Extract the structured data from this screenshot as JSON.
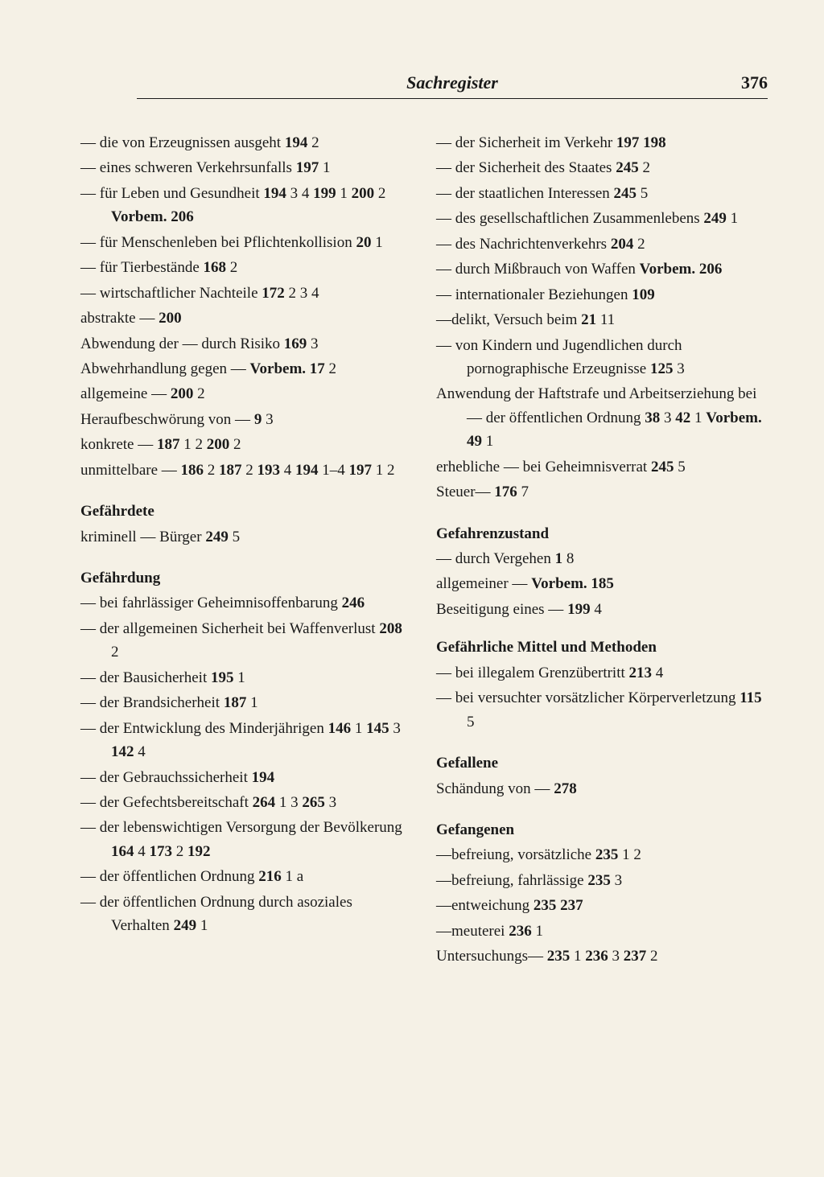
{
  "page": {
    "title": "Sachregister",
    "number": "376",
    "background_color": "#f5f1e6",
    "text_color": "#1a1a1a",
    "font_family": "Georgia, Times New Roman, serif",
    "body_fontsize": 19,
    "heading_fontsize": 22,
    "line_height": 1.55
  },
  "left_column": {
    "entries_1": [
      {
        "segments": [
          {
            "t": "— die von Erzeugnissen ausgeht "
          },
          {
            "t": "194",
            "b": true
          },
          {
            "t": " 2"
          }
        ]
      },
      {
        "segments": [
          {
            "t": "— eines schweren Verkehrsunfalls  "
          },
          {
            "t": "197",
            "b": true
          },
          {
            "t": " 1"
          }
        ]
      },
      {
        "segments": [
          {
            "t": "— für Leben und Gesundheit "
          },
          {
            "t": "194",
            "b": true
          },
          {
            "t": " 3 4  "
          },
          {
            "t": "199",
            "b": true
          },
          {
            "t": " 1  "
          },
          {
            "t": "200",
            "b": true
          },
          {
            "t": " 2 "
          },
          {
            "t": "Vorbem. 206",
            "b": true
          }
        ]
      },
      {
        "segments": [
          {
            "t": "— für Menschenleben bei Pflichtenkollision  "
          },
          {
            "t": "20",
            "b": true
          },
          {
            "t": " 1"
          }
        ]
      },
      {
        "segments": [
          {
            "t": "— für Tierbestände  "
          },
          {
            "t": "168",
            "b": true
          },
          {
            "t": " 2"
          }
        ]
      },
      {
        "segments": [
          {
            "t": "— wirtschaftlicher Nachteile "
          },
          {
            "t": "172",
            "b": true
          },
          {
            "t": " 2 3 4"
          }
        ]
      },
      {
        "segments": [
          {
            "t": "abstrakte —   "
          },
          {
            "t": "200",
            "b": true
          }
        ]
      },
      {
        "segments": [
          {
            "t": "Abwendung der — durch Risiko "
          },
          {
            "t": "169",
            "b": true
          },
          {
            "t": " 3"
          }
        ]
      },
      {
        "segments": [
          {
            "t": "Abwehrhandlung gegen — "
          },
          {
            "t": "Vorbem. 17",
            "b": true
          },
          {
            "t": " 2"
          }
        ]
      },
      {
        "segments": [
          {
            "t": "allgemeine —  "
          },
          {
            "t": "200",
            "b": true
          },
          {
            "t": " 2"
          }
        ]
      },
      {
        "segments": [
          {
            "t": "Heraufbeschwörung von —  "
          },
          {
            "t": "9",
            "b": true
          },
          {
            "t": " 3"
          }
        ]
      },
      {
        "segments": [
          {
            "t": "konkrete —  "
          },
          {
            "t": "187",
            "b": true
          },
          {
            "t": " 1 2  "
          },
          {
            "t": "200",
            "b": true
          },
          {
            "t": " 2"
          }
        ]
      },
      {
        "segments": [
          {
            "t": "unmittelbare —  "
          },
          {
            "t": "186",
            "b": true
          },
          {
            "t": " 2  "
          },
          {
            "t": "187",
            "b": true
          },
          {
            "t": " 2 "
          },
          {
            "t": "193",
            "b": true
          },
          {
            "t": " 4  "
          },
          {
            "t": "194",
            "b": true
          },
          {
            "t": " 1–4  "
          },
          {
            "t": "197",
            "b": true
          },
          {
            "t": " 1 2"
          }
        ]
      }
    ],
    "section_gefaehrdete": {
      "head": "Gefährdete",
      "entries": [
        {
          "segments": [
            {
              "t": "kriminell — Bürger  "
            },
            {
              "t": "249",
              "b": true
            },
            {
              "t": " 5"
            }
          ]
        }
      ]
    },
    "section_gefaehrdung": {
      "head": "Gefährdung",
      "entries": [
        {
          "segments": [
            {
              "t": "— bei fahrlässiger Geheimnisoffenbarung  "
            },
            {
              "t": "246",
              "b": true
            }
          ]
        },
        {
          "segments": [
            {
              "t": "— der allgemeinen Sicherheit bei Waffenverlust  "
            },
            {
              "t": "208",
              "b": true
            },
            {
              "t": " 2"
            }
          ]
        },
        {
          "segments": [
            {
              "t": "— der Bausicherheit  "
            },
            {
              "t": "195",
              "b": true
            },
            {
              "t": " 1"
            }
          ]
        },
        {
          "segments": [
            {
              "t": "— der Brandsicherheit  "
            },
            {
              "t": "187",
              "b": true
            },
            {
              "t": " 1"
            }
          ]
        },
        {
          "segments": [
            {
              "t": "— der Entwicklung des Minderjährigen  "
            },
            {
              "t": "146",
              "b": true
            },
            {
              "t": " 1  "
            },
            {
              "t": "145",
              "b": true
            },
            {
              "t": " 3  "
            },
            {
              "t": "142",
              "b": true
            },
            {
              "t": " 4"
            }
          ]
        },
        {
          "segments": [
            {
              "t": "— der Gebrauchssicherheit  "
            },
            {
              "t": "194",
              "b": true
            }
          ]
        },
        {
          "segments": [
            {
              "t": "— der Gefechtsbereitschaft "
            },
            {
              "t": "264",
              "b": true
            },
            {
              "t": " 1 3  "
            },
            {
              "t": "265",
              "b": true
            },
            {
              "t": " 3"
            }
          ]
        },
        {
          "segments": [
            {
              "t": "— der lebenswichtigen Versorgung der Bevölkerung  "
            },
            {
              "t": "164",
              "b": true
            },
            {
              "t": " 4 "
            },
            {
              "t": "173",
              "b": true
            },
            {
              "t": " 2  "
            },
            {
              "t": "192",
              "b": true
            }
          ]
        },
        {
          "segments": [
            {
              "t": "— der öffentlichen Ordnung "
            },
            {
              "t": "216",
              "b": true
            },
            {
              "t": " 1 a"
            }
          ]
        },
        {
          "segments": [
            {
              "t": "— der öffentlichen Ordnung durch asoziales Verhalten "
            },
            {
              "t": "249",
              "b": true
            },
            {
              "t": " 1"
            }
          ]
        }
      ]
    }
  },
  "right_column": {
    "entries_1": [
      {
        "segments": [
          {
            "t": "— der Sicherheit im Verkehr "
          },
          {
            "t": "197",
            "b": true
          },
          {
            "t": "  "
          },
          {
            "t": "198",
            "b": true
          }
        ]
      },
      {
        "segments": [
          {
            "t": "— der Sicherheit des Staates "
          },
          {
            "t": "245",
            "b": true
          },
          {
            "t": " 2"
          }
        ]
      },
      {
        "segments": [
          {
            "t": "— der staatlichen Interessen "
          },
          {
            "t": "245",
            "b": true
          },
          {
            "t": " 5"
          }
        ]
      },
      {
        "segments": [
          {
            "t": "— des gesellschaftlichen Zusammenlebens  "
          },
          {
            "t": "249",
            "b": true
          },
          {
            "t": " 1"
          }
        ]
      },
      {
        "segments": [
          {
            "t": "— des Nachrichtenverkehrs "
          },
          {
            "t": "204",
            "b": true
          },
          {
            "t": " 2"
          }
        ]
      },
      {
        "segments": [
          {
            "t": "— durch Mißbrauch von Waffen "
          },
          {
            "t": "Vorbem. 206",
            "b": true
          }
        ]
      },
      {
        "segments": [
          {
            "t": "— internationaler Beziehungen "
          },
          {
            "t": "109",
            "b": true
          }
        ]
      },
      {
        "segments": [
          {
            "t": "—delikt, Versuch beim  "
          },
          {
            "t": "21",
            "b": true
          },
          {
            "t": " 11"
          }
        ]
      },
      {
        "segments": [
          {
            "t": "— von Kindern und Jugendlichen durch pornographische Erzeugnisse  "
          },
          {
            "t": "125",
            "b": true
          },
          {
            "t": " 3"
          }
        ]
      },
      {
        "segments": [
          {
            "t": "Anwendung der Haftstrafe und Arbeitserziehung bei — der öffentlichen Ordnung  "
          },
          {
            "t": "38",
            "b": true
          },
          {
            "t": " 3 "
          },
          {
            "t": "42",
            "b": true
          },
          {
            "t": " 1  "
          },
          {
            "t": "Vorbem. 49",
            "b": true
          },
          {
            "t": " 1"
          }
        ]
      },
      {
        "segments": [
          {
            "t": "erhebliche — bei Geheimnisverrat  "
          },
          {
            "t": "245",
            "b": true
          },
          {
            "t": " 5"
          }
        ]
      },
      {
        "segments": [
          {
            "t": "Steuer—  "
          },
          {
            "t": "176",
            "b": true
          },
          {
            "t": " 7"
          }
        ]
      }
    ],
    "section_gefahrenzustand": {
      "head": "Gefahrenzustand",
      "entries": [
        {
          "segments": [
            {
              "t": "— durch Vergehen  "
            },
            {
              "t": "1",
              "b": true
            },
            {
              "t": " 8"
            }
          ]
        },
        {
          "segments": [
            {
              "t": "allgemeiner —  "
            },
            {
              "t": "Vorbem. 185",
              "b": true
            }
          ]
        },
        {
          "segments": [
            {
              "t": "Beseitigung eines —  "
            },
            {
              "t": "199",
              "b": true
            },
            {
              "t": " 4"
            }
          ]
        }
      ]
    },
    "section_gefaehrliche": {
      "head": "Gefährliche Mittel und Methoden",
      "entries": [
        {
          "segments": [
            {
              "t": "— bei illegalem Grenzübertritt "
            },
            {
              "t": "213",
              "b": true
            },
            {
              "t": " 4"
            }
          ]
        },
        {
          "segments": [
            {
              "t": "— bei versuchter vorsätzlicher Körperverletzung  "
            },
            {
              "t": "115",
              "b": true
            },
            {
              "t": " 5"
            }
          ]
        }
      ]
    },
    "section_gefallene": {
      "head": "Gefallene",
      "entries": [
        {
          "segments": [
            {
              "t": "Schändung von —  "
            },
            {
              "t": "278",
              "b": true
            }
          ]
        }
      ]
    },
    "section_gefangenen": {
      "head": "Gefangenen",
      "entries": [
        {
          "segments": [
            {
              "t": "—befreiung, vorsätzliche  "
            },
            {
              "t": "235",
              "b": true
            },
            {
              "t": " 1 2"
            }
          ]
        },
        {
          "segments": [
            {
              "t": "—befreiung, fahrlässige  "
            },
            {
              "t": "235",
              "b": true
            },
            {
              "t": " 3"
            }
          ]
        },
        {
          "segments": [
            {
              "t": "—entweichung  "
            },
            {
              "t": "235",
              "b": true
            },
            {
              "t": "  "
            },
            {
              "t": "237",
              "b": true
            }
          ]
        },
        {
          "segments": [
            {
              "t": "—meuterei  "
            },
            {
              "t": "236",
              "b": true
            },
            {
              "t": " 1"
            }
          ]
        },
        {
          "segments": [
            {
              "t": "Untersuchungs—  "
            },
            {
              "t": "235",
              "b": true
            },
            {
              "t": " 1  "
            },
            {
              "t": "236",
              "b": true
            },
            {
              "t": " 3 "
            },
            {
              "t": "237",
              "b": true
            },
            {
              "t": " 2"
            }
          ]
        }
      ]
    }
  }
}
